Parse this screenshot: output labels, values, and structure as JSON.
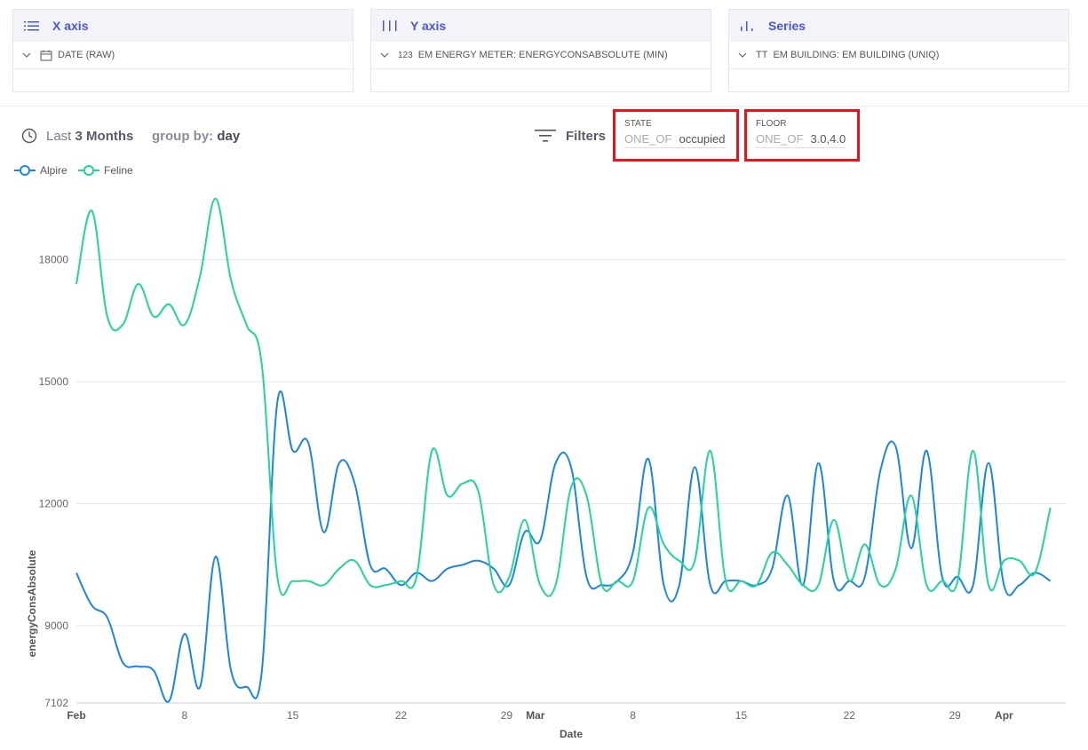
{
  "config": {
    "x_axis": {
      "title": "X axis",
      "field": "DATE (RAW)",
      "icon": "list-icon",
      "field_icon": "calendar-icon"
    },
    "y_axis": {
      "title": "Y axis",
      "field": "EM ENERGY METER: ENERGYCONSABSOLUTE (MIN)",
      "icon": "bars-icon",
      "field_icon": "123"
    },
    "series": {
      "title": "Series",
      "field": "EM BUILDING: EM BUILDING (UNIQ)",
      "icon": "series-icon",
      "field_icon": "TT"
    }
  },
  "toolbar": {
    "period_prefix": "Last",
    "period_value": "3 Months",
    "groupby_label": "group by:",
    "groupby_value": "day",
    "filters_label": "Filters"
  },
  "filters": [
    {
      "name": "STATE",
      "operator": "ONE_OF",
      "value": "occupied"
    },
    {
      "name": "FLOOR",
      "operator": "ONE_OF",
      "value": "3.0,4.0"
    }
  ],
  "colors": {
    "accent": "#4b55d6",
    "alpire": "#1a86e0",
    "feline": "#1fd69a",
    "highlight": "#e8141c"
  },
  "chart_data": {
    "type": "line",
    "xlabel": "Date",
    "ylabel": "energyConsAbsolute",
    "ylim": [
      7102,
      19800
    ],
    "yticks": [
      7102,
      9000,
      12000,
      15000,
      18000
    ],
    "x_start": "2024-02-01",
    "x_end": "2024-04-05",
    "xticks": [
      {
        "label": "Feb",
        "date": "2024-02-01",
        "bold": true
      },
      {
        "label": "8",
        "date": "2024-02-08",
        "bold": false
      },
      {
        "label": "15",
        "date": "2024-02-15",
        "bold": false
      },
      {
        "label": "22",
        "date": "2024-02-22",
        "bold": false
      },
      {
        "label": "29",
        "date": "2024-02-29",
        "bold": false
      },
      {
        "label": "Mar",
        "date": "2024-03-01",
        "bold": true
      },
      {
        "label": "8",
        "date": "2024-03-08",
        "bold": false
      },
      {
        "label": "15",
        "date": "2024-03-15",
        "bold": false
      },
      {
        "label": "22",
        "date": "2024-03-22",
        "bold": false
      },
      {
        "label": "29",
        "date": "2024-03-29",
        "bold": false
      },
      {
        "label": "Apr",
        "date": "2024-04-01",
        "bold": true
      }
    ],
    "legend": "top-left",
    "grid": true,
    "series": [
      {
        "name": "Alpire",
        "color": "#1a86e0",
        "points": [
          [
            "2024-02-01",
            10300
          ],
          [
            "2024-02-02",
            9500
          ],
          [
            "2024-02-03",
            9200
          ],
          [
            "2024-02-04",
            8100
          ],
          [
            "2024-02-05",
            8000
          ],
          [
            "2024-02-06",
            7900
          ],
          [
            "2024-02-07",
            7150
          ],
          [
            "2024-02-08",
            8800
          ],
          [
            "2024-02-09",
            7500
          ],
          [
            "2024-02-10",
            10700
          ],
          [
            "2024-02-11",
            7900
          ],
          [
            "2024-02-12",
            7500
          ],
          [
            "2024-02-13",
            7900
          ],
          [
            "2024-02-14",
            14500
          ],
          [
            "2024-02-15",
            13300
          ],
          [
            "2024-02-16",
            13500
          ],
          [
            "2024-02-17",
            11300
          ],
          [
            "2024-02-18",
            13000
          ],
          [
            "2024-02-19",
            12500
          ],
          [
            "2024-02-20",
            10500
          ],
          [
            "2024-02-21",
            10400
          ],
          [
            "2024-02-22",
            10000
          ],
          [
            "2024-02-23",
            10300
          ],
          [
            "2024-02-24",
            10100
          ],
          [
            "2024-02-25",
            10400
          ],
          [
            "2024-02-26",
            10500
          ],
          [
            "2024-02-27",
            10600
          ],
          [
            "2024-02-28",
            10400
          ],
          [
            "2024-02-29",
            10000
          ],
          [
            "2024-03-01",
            11300
          ],
          [
            "2024-03-02",
            11100
          ],
          [
            "2024-03-03",
            13000
          ],
          [
            "2024-03-04",
            12900
          ],
          [
            "2024-03-05",
            10200
          ],
          [
            "2024-03-06",
            10000
          ],
          [
            "2024-03-07",
            10100
          ],
          [
            "2024-03-08",
            10800
          ],
          [
            "2024-03-09",
            13100
          ],
          [
            "2024-03-10",
            10000
          ],
          [
            "2024-03-11",
            10000
          ],
          [
            "2024-03-12",
            12900
          ],
          [
            "2024-03-13",
            10000
          ],
          [
            "2024-03-14",
            10100
          ],
          [
            "2024-03-15",
            10100
          ],
          [
            "2024-03-16",
            10000
          ],
          [
            "2024-03-17",
            10400
          ],
          [
            "2024-03-18",
            12200
          ],
          [
            "2024-03-19",
            10000
          ],
          [
            "2024-03-20",
            13000
          ],
          [
            "2024-03-21",
            10100
          ],
          [
            "2024-03-22",
            10100
          ],
          [
            "2024-03-23",
            10200
          ],
          [
            "2024-03-24",
            12800
          ],
          [
            "2024-03-25",
            13400
          ],
          [
            "2024-03-26",
            10900
          ],
          [
            "2024-03-27",
            13300
          ],
          [
            "2024-03-28",
            10200
          ],
          [
            "2024-03-29",
            10200
          ],
          [
            "2024-03-30",
            10000
          ],
          [
            "2024-03-31",
            13000
          ],
          [
            "2024-04-01",
            10000
          ],
          [
            "2024-04-02",
            10000
          ],
          [
            "2024-04-03",
            10300
          ],
          [
            "2024-04-04",
            10100
          ]
        ]
      },
      {
        "name": "Feline",
        "color": "#1fd69a",
        "points": [
          [
            "2024-02-01",
            17400
          ],
          [
            "2024-02-02",
            19200
          ],
          [
            "2024-02-03",
            16600
          ],
          [
            "2024-02-04",
            16400
          ],
          [
            "2024-02-05",
            17400
          ],
          [
            "2024-02-06",
            16600
          ],
          [
            "2024-02-07",
            16900
          ],
          [
            "2024-02-08",
            16400
          ],
          [
            "2024-02-09",
            17600
          ],
          [
            "2024-02-10",
            19500
          ],
          [
            "2024-02-11",
            17500
          ],
          [
            "2024-02-12",
            16400
          ],
          [
            "2024-02-13",
            15400
          ],
          [
            "2024-02-14",
            10200
          ],
          [
            "2024-02-15",
            10100
          ],
          [
            "2024-02-16",
            10100
          ],
          [
            "2024-02-17",
            10000
          ],
          [
            "2024-02-18",
            10400
          ],
          [
            "2024-02-19",
            10600
          ],
          [
            "2024-02-20",
            10000
          ],
          [
            "2024-02-21",
            10000
          ],
          [
            "2024-02-22",
            10100
          ],
          [
            "2024-02-23",
            10200
          ],
          [
            "2024-02-24",
            13300
          ],
          [
            "2024-02-25",
            12200
          ],
          [
            "2024-02-26",
            12500
          ],
          [
            "2024-02-27",
            12300
          ],
          [
            "2024-02-28",
            10000
          ],
          [
            "2024-02-29",
            10200
          ],
          [
            "2024-03-01",
            11600
          ],
          [
            "2024-03-02",
            10000
          ],
          [
            "2024-03-03",
            10000
          ],
          [
            "2024-03-04",
            12400
          ],
          [
            "2024-03-05",
            12200
          ],
          [
            "2024-03-06",
            10000
          ],
          [
            "2024-03-07",
            10100
          ],
          [
            "2024-03-08",
            10100
          ],
          [
            "2024-03-09",
            11900
          ],
          [
            "2024-03-10",
            11000
          ],
          [
            "2024-03-11",
            10600
          ],
          [
            "2024-03-12",
            10600
          ],
          [
            "2024-03-13",
            13300
          ],
          [
            "2024-03-14",
            10100
          ],
          [
            "2024-03-15",
            10100
          ],
          [
            "2024-03-16",
            10000
          ],
          [
            "2024-03-17",
            10800
          ],
          [
            "2024-03-18",
            10500
          ],
          [
            "2024-03-19",
            10000
          ],
          [
            "2024-03-20",
            10000
          ],
          [
            "2024-03-21",
            11600
          ],
          [
            "2024-03-22",
            10100
          ],
          [
            "2024-03-23",
            11000
          ],
          [
            "2024-03-24",
            10000
          ],
          [
            "2024-03-25",
            10400
          ],
          [
            "2024-03-26",
            12200
          ],
          [
            "2024-03-27",
            10000
          ],
          [
            "2024-03-28",
            10100
          ],
          [
            "2024-03-29",
            10100
          ],
          [
            "2024-03-30",
            13300
          ],
          [
            "2024-03-31",
            10000
          ],
          [
            "2024-04-01",
            10600
          ],
          [
            "2024-04-02",
            10600
          ],
          [
            "2024-04-03",
            10300
          ],
          [
            "2024-04-04",
            11900
          ]
        ]
      }
    ]
  }
}
